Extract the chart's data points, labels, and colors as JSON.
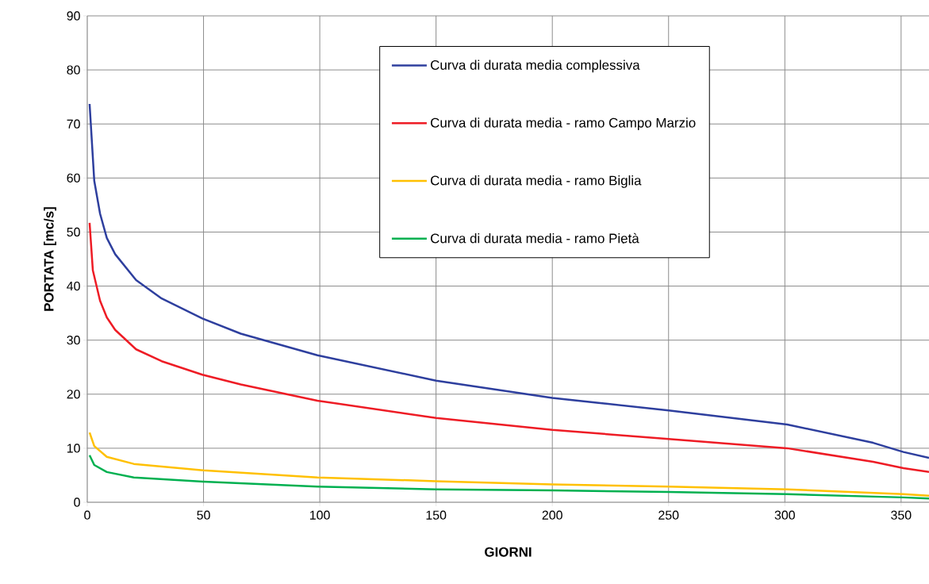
{
  "chart_data": {
    "type": "line",
    "xlabel": "GIORNI",
    "ylabel": "PORTATA [mc/s]",
    "xlim": [
      0,
      362
    ],
    "ylim": [
      0,
      90
    ],
    "xticks": [
      0,
      50,
      100,
      150,
      200,
      250,
      300,
      350
    ],
    "yticks": [
      0,
      10,
      20,
      30,
      40,
      50,
      60,
      70,
      80,
      90
    ],
    "grid": true,
    "legend": "top right",
    "series": [
      {
        "name": "Curva di durata media complessiva",
        "color": "#2e3f9e",
        "x": [
          1,
          3,
          5.5,
          8.4,
          12,
          21,
          32,
          49.5,
          66,
          99,
          150,
          200,
          250,
          301,
          338,
          351,
          362
        ],
        "values": [
          73.7,
          59.5,
          53.4,
          48.9,
          45.9,
          41.1,
          37.7,
          34,
          31.2,
          27.2,
          22.5,
          19.3,
          17,
          14.4,
          11,
          9.3,
          8.2
        ]
      },
      {
        "name": "Curva di durata media - ramo Campo Marzio",
        "color": "#ee1c25",
        "x": [
          1,
          2.4,
          5.5,
          8.4,
          12,
          21,
          32,
          49.5,
          66,
          99,
          150,
          200,
          250,
          301,
          338,
          351,
          362
        ],
        "values": [
          51.7,
          42.9,
          37.3,
          34.2,
          31.9,
          28.3,
          26.1,
          23.6,
          21.8,
          18.8,
          15.6,
          13.4,
          11.7,
          10,
          7.5,
          6.3,
          5.6
        ]
      },
      {
        "name": "Curva di durata media - ramo Biglia",
        "color": "#ffc000",
        "x": [
          1,
          3,
          8.4,
          20,
          50,
          99,
          150,
          200,
          250,
          301,
          351,
          362
        ],
        "values": [
          12.9,
          10.4,
          8.4,
          7.1,
          5.9,
          4.6,
          3.9,
          3.3,
          2.9,
          2.4,
          1.5,
          1.2
        ]
      },
      {
        "name": "Curva di durata media - ramo Pietà",
        "color": "#00b050",
        "x": [
          1,
          3,
          8.4,
          20,
          50,
          99,
          150,
          200,
          250,
          301,
          351,
          362
        ],
        "values": [
          8.7,
          6.9,
          5.6,
          4.6,
          3.8,
          2.9,
          2.4,
          2.2,
          1.9,
          1.5,
          0.9,
          0.7
        ]
      }
    ]
  }
}
